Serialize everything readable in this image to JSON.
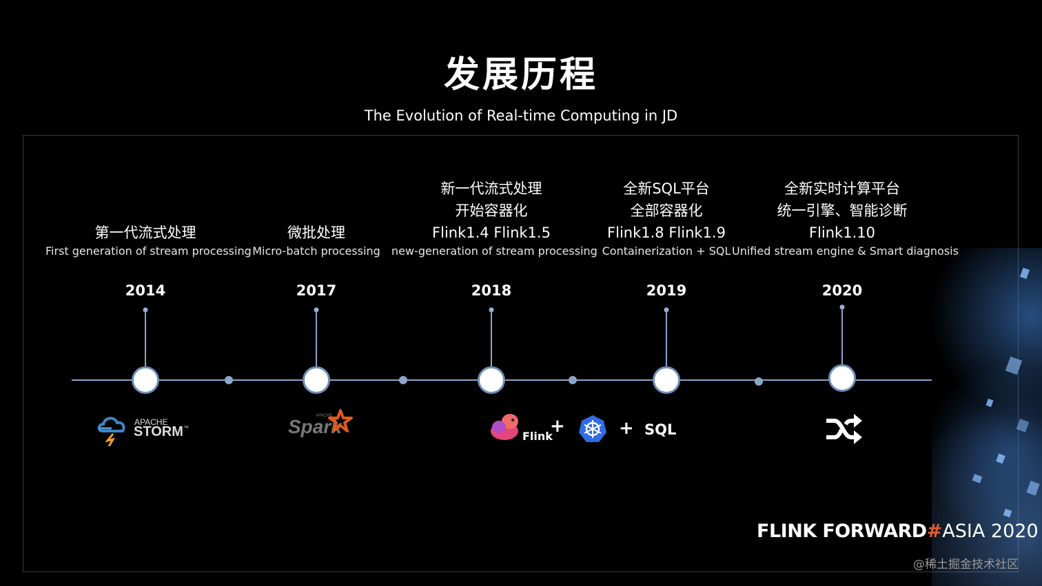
{
  "title": "发展历程",
  "subtitle": "The Evolution of Real-time Computing in JD",
  "timeline": [
    {
      "cn_lines": [
        "第一代流式处理"
      ],
      "version": "",
      "en": "First generation of stream processing",
      "year": "2014",
      "logo": "apache-storm-logo"
    },
    {
      "cn_lines": [
        "微批处理"
      ],
      "version": "",
      "en": "Micro-batch processing",
      "year": "2017",
      "logo": "apache-spark-logo"
    },
    {
      "cn_lines": [
        "新一代流式处理",
        "开始容器化"
      ],
      "version": "Flink1.4 Flink1.5",
      "en": "new-generation of stream processing",
      "year": "2018",
      "logo": "flink-kubernetes-sql-logos"
    },
    {
      "cn_lines": [
        "全新SQL平台",
        "全部容器化"
      ],
      "version": "Flink1.8 Flink1.9",
      "en": "Containerization + SQL",
      "year": "2019",
      "logo": ""
    },
    {
      "cn_lines": [
        "全新实时计算平台",
        "统一引擎、智能诊断"
      ],
      "version": "Flink1.10",
      "en": "Unified stream engine & Smart diagnosis",
      "year": "2020",
      "logo": "shuffle-icon"
    }
  ],
  "logos": {
    "storm_small": "APACHE",
    "storm_big": "STORM",
    "storm_tm": "™",
    "spark_small": "APACHE",
    "spark_big": "Spark",
    "flink_word": "Flink",
    "plus1": "+",
    "plus2": "+",
    "sql": "SQL"
  },
  "brand": {
    "part1": "FLINK",
    "part2": "FORWARD",
    "hash": "#",
    "part3": "ASIA 2020"
  },
  "watermark": "@稀土掘金技术社区",
  "colors": {
    "background": "#000000",
    "line": "#8ba6c8",
    "accent": "#e65c2f",
    "node_border": "#6f8fbd"
  }
}
